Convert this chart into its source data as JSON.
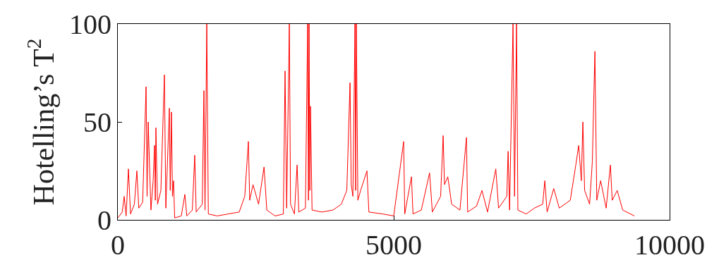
{
  "chart_data": {
    "type": "line",
    "ylabel": "Hotelling’s T$^{2}$",
    "xlim": [
      0,
      10000
    ],
    "xticks": [
      0,
      5000,
      10000
    ],
    "ylim": [
      0,
      100
    ],
    "yticks": [
      0,
      50,
      100
    ],
    "marker": "none",
    "line_style": "solid",
    "series": [
      {
        "color": "#ff0000",
        "x": [
          0,
          80,
          115,
          150,
          192,
          230,
          300,
          345,
          380,
          450,
          512,
          530,
          550,
          600,
          640,
          665,
          680,
          690,
          720,
          780,
          844,
          870,
          934,
          950,
          972,
          990,
          1010,
          1030,
          1150,
          1215,
          1250,
          1350,
          1394,
          1420,
          1530,
          1560,
          1580,
          1612,
          1640,
          1800,
          2000,
          2200,
          2300,
          2366,
          2390,
          2450,
          2550,
          2650,
          2700,
          2850,
          3000,
          3031,
          3060,
          3108,
          3130,
          3200,
          3249,
          3280,
          3400,
          3440,
          3455,
          3466,
          3480,
          3492,
          3520,
          3700,
          3900,
          4050,
          4150,
          4208,
          4230,
          4260,
          4298,
          4310,
          4323,
          4350,
          4400,
          4515,
          4550,
          4800,
          5000,
          5180,
          5200,
          5321,
          5350,
          5500,
          5650,
          5700,
          5850,
          5896,
          5920,
          5980,
          6050,
          6200,
          6318,
          6340,
          6500,
          6600,
          6700,
          6850,
          6900,
          7050,
          7073,
          7100,
          7162,
          7190,
          7226,
          7250,
          7400,
          7550,
          7700,
          7738,
          7780,
          7900,
          8000,
          8200,
          8300,
          8352,
          8400,
          8428,
          8460,
          8550,
          8600,
          8646,
          8680,
          8750,
          8850,
          8927,
          8960,
          9050,
          9150,
          9362
        ],
        "values": [
          1,
          4,
          12,
          2,
          26,
          3,
          8,
          25,
          6,
          9,
          68,
          12,
          50,
          5,
          20,
          38,
          10,
          47,
          8,
          15,
          74,
          6,
          57,
          15,
          55,
          12,
          20,
          1,
          2,
          13,
          2,
          5,
          33,
          4,
          8,
          66,
          5,
          100,
          3,
          2,
          3,
          4,
          12,
          40,
          10,
          18,
          8,
          27,
          5,
          2,
          3,
          76,
          6,
          100,
          8,
          3,
          28,
          4,
          6,
          100,
          10,
          100,
          15,
          58,
          5,
          4,
          5,
          8,
          15,
          70,
          18,
          12,
          100,
          15,
          100,
          10,
          15,
          25,
          4,
          3,
          2,
          40,
          3,
          22,
          3,
          5,
          24,
          4,
          12,
          43,
          18,
          22,
          8,
          5,
          42,
          4,
          7,
          15,
          4,
          26,
          6,
          12,
          35,
          5,
          100,
          12,
          100,
          5,
          3,
          6,
          8,
          20,
          4,
          16,
          6,
          10,
          28,
          38,
          20,
          50,
          15,
          8,
          30,
          86,
          10,
          20,
          6,
          28,
          10,
          15,
          5,
          2
        ]
      }
    ]
  }
}
